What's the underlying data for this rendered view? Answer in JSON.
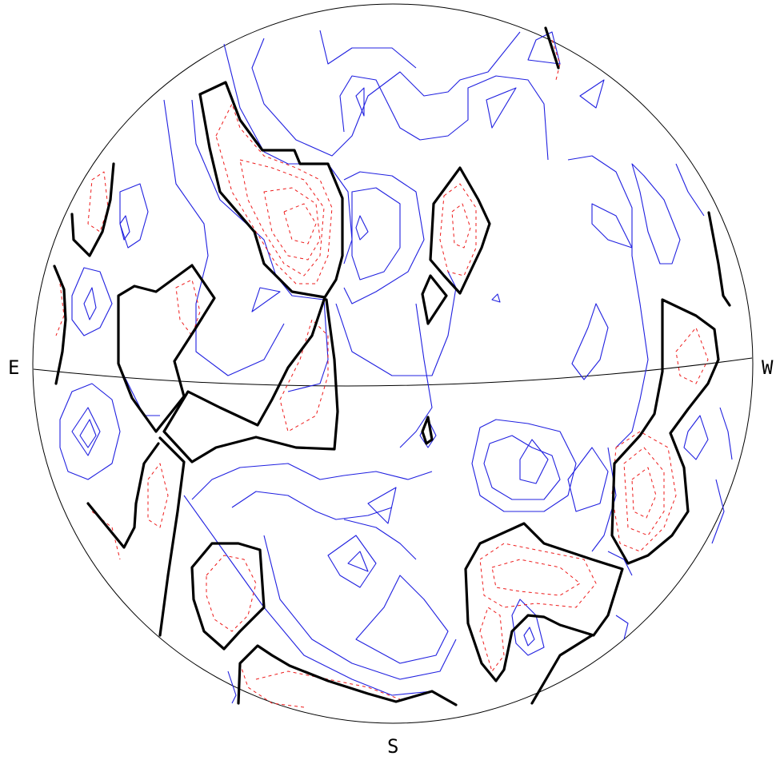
{
  "labels": {
    "east": "E",
    "west": "W",
    "south": "S"
  },
  "colors": {
    "zero_contour": "#000000",
    "positive_contour": "#2020e0",
    "negative_contour": "#ee1b1b",
    "outline": "#000000"
  }
}
